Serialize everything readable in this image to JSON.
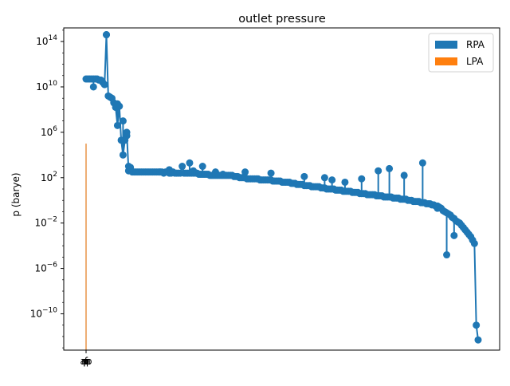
{
  "chart_data": {
    "type": "line",
    "title": "outlet pressure",
    "xlabel": "",
    "ylabel": "p (barye)",
    "yscale": "log",
    "ylim_exp": [
      -13.2,
      15.2
    ],
    "yticks": [
      {
        "exp": 14,
        "label": "10",
        "sup": "14"
      },
      {
        "exp": 10,
        "label": "10",
        "sup": "10"
      },
      {
        "exp": 6,
        "label": "10",
        "sup": "6"
      },
      {
        "exp": 2,
        "label": "10",
        "sup": "2"
      },
      {
        "exp": -2,
        "label": "10",
        "sup": "−2"
      },
      {
        "exp": -6,
        "label": "10",
        "sup": "−6"
      },
      {
        "exp": -10,
        "label": "10",
        "sup": "−10"
      }
    ],
    "xticks": [
      "p",
      "m",
      "r",
      "rc",
      "f",
      "e",
      "ap",
      "p"
    ],
    "grid": false,
    "legend_position": "upper right",
    "series": [
      {
        "name": "RPA",
        "color": "#1f77b4",
        "style": "line+markers",
        "y_exp": [
          10.7,
          10.7,
          10.7,
          10.7,
          10.7,
          10.7,
          10.7,
          10.6,
          10.6,
          10.4,
          10.2,
          14.6,
          9.2,
          9.1,
          9.0,
          8.6,
          8.2,
          6.6,
          8.3,
          5.3,
          4.0,
          5.3,
          6.0,
          2.6,
          2.9,
          2.5,
          2.5,
          2.5,
          2.5,
          2.5,
          2.5,
          2.5,
          2.5,
          2.5,
          2.5,
          2.5,
          2.5,
          2.5,
          2.5,
          2.5,
          2.5,
          2.5,
          2.4,
          2.5,
          2.5,
          2.4,
          2.4,
          2.5,
          2.4,
          2.4,
          2.4,
          2.4,
          3.0,
          2.4,
          2.4,
          2.4,
          2.4,
          2.4,
          2.4,
          2.4,
          2.4,
          2.3,
          2.3,
          2.3,
          2.3,
          2.3,
          2.3,
          2.2,
          2.2,
          2.2,
          2.2,
          2.2,
          2.2,
          2.2,
          2.2,
          2.2,
          2.2,
          2.2,
          2.2,
          2.2,
          2.1,
          2.1,
          2.1,
          2.0,
          2.0,
          2.0,
          2.0,
          1.9,
          1.9,
          1.9,
          1.9,
          1.9,
          1.9,
          1.9,
          1.8,
          1.8,
          1.8,
          1.8,
          1.8,
          1.8,
          1.8,
          1.7,
          1.7,
          1.7,
          1.7,
          1.7,
          1.6,
          1.6,
          1.6,
          1.6,
          1.6,
          1.5,
          1.5,
          1.5,
          1.4,
          1.4,
          1.4,
          1.4,
          1.3,
          1.3,
          1.3,
          1.3,
          1.2,
          1.2,
          1.2,
          1.2,
          1.2,
          1.1,
          1.1,
          1.1,
          1.0,
          1.0,
          1.0,
          1.0,
          1.0,
          0.9,
          0.9,
          0.9,
          0.9,
          0.8,
          0.8,
          0.8,
          0.8,
          0.8,
          0.7,
          0.7,
          0.7,
          0.7,
          0.6,
          0.6,
          0.6,
          0.6,
          0.5,
          0.5,
          0.5,
          0.5,
          0.5,
          0.4,
          0.4,
          0.4,
          0.4,
          0.3,
          0.3,
          0.3,
          0.3,
          0.3,
          0.2,
          0.2,
          0.2,
          0.2,
          0.1,
          0.1,
          0.1,
          0.1,
          0.0,
          0.0,
          0.0,
          -0.1,
          -0.1,
          -0.1,
          -0.1,
          -0.2,
          -0.2,
          -0.2,
          -0.3,
          -0.3,
          -0.3,
          -0.4,
          -0.4,
          -0.5,
          -0.5,
          -0.6,
          -0.7,
          -0.9,
          -1.0,
          -1.1,
          -1.2,
          -1.3,
          -1.5,
          -1.6,
          -1.8,
          -1.9,
          -2.0,
          -2.2,
          -2.4,
          -2.6,
          -2.8,
          -3.0,
          -3.2,
          -3.5,
          -3.8,
          -11.0,
          -12.3
        ],
        "spikes": [
          [
            4,
            10.0
          ],
          [
            11,
            14.6
          ],
          [
            17,
            8.5
          ],
          [
            20,
            7.0
          ],
          [
            22,
            5.7
          ],
          [
            23,
            3.0
          ],
          [
            40,
            2.5
          ],
          [
            45,
            2.7
          ],
          [
            56,
            3.3
          ],
          [
            58,
            2.6
          ],
          [
            63,
            3.0
          ],
          [
            70,
            2.5
          ],
          [
            74,
            2.3
          ],
          [
            86,
            2.5
          ],
          [
            100,
            2.4
          ],
          [
            118,
            2.1
          ],
          [
            129,
            2.0
          ],
          [
            133,
            1.8
          ],
          [
            140,
            1.6
          ],
          [
            149,
            1.9
          ],
          [
            158,
            2.6
          ],
          [
            164,
            2.8
          ],
          [
            172,
            2.2
          ],
          [
            182,
            3.3
          ],
          [
            190,
            -0.7
          ],
          [
            195,
            -4.8
          ],
          [
            199,
            -3.1
          ]
        ]
      },
      {
        "name": "LPA",
        "color": "#ff7f0e",
        "style": "bar",
        "x_index": 0,
        "y_exp": 5.0
      }
    ]
  }
}
